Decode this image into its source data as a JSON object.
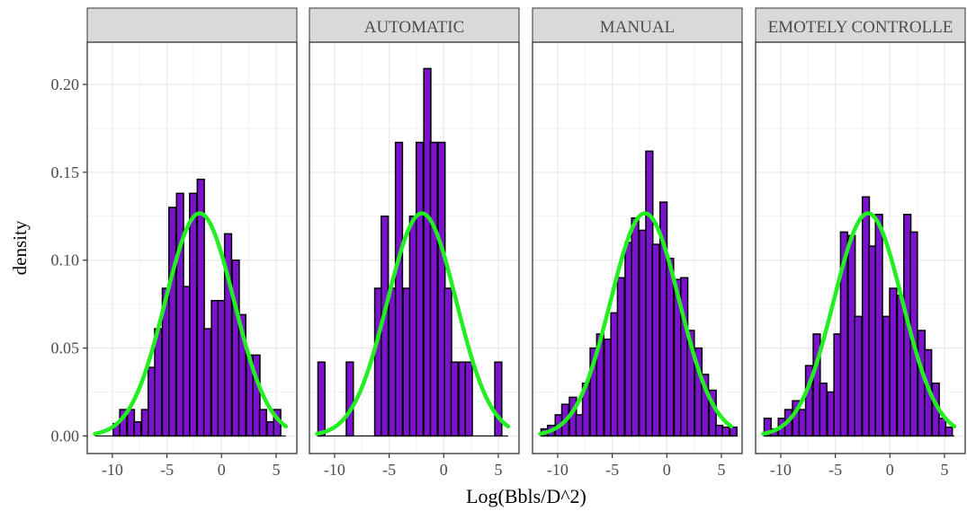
{
  "chart_data": {
    "type": "bar",
    "subtype": "faceted-histogram-with-normal-density-curve",
    "xlabel": "Log(Bbls/D^2)",
    "ylabel": "density",
    "xlim": [
      -12.3,
      6.9
    ],
    "ylim": [
      -0.01,
      0.224
    ],
    "x_ticks": [
      -10,
      -5,
      0,
      5
    ],
    "x_tick_labels": [
      "-10",
      "-5",
      "0",
      "5"
    ],
    "y_ticks": [
      0,
      0.05,
      0.1,
      0.15,
      0.2
    ],
    "y_tick_labels": [
      "0.00",
      "0.05",
      "0.10",
      "0.15",
      "0.20"
    ],
    "grid": true,
    "bin_width": 0.64,
    "colors": {
      "bar_fill": "#7b12cc",
      "bar_stroke": "#000000",
      "curve": "#22ee22",
      "strip_fill": "#d9d9d9"
    },
    "normal_curve": {
      "mean": -2.0,
      "sd": 3.15
    },
    "panels": [
      {
        "strip_label": "",
        "bin_centers": [
          -9.6,
          -9.0,
          -8.3,
          -7.7,
          -7.0,
          -6.4,
          -5.8,
          -5.1,
          -4.5,
          -3.8,
          -3.2,
          -2.6,
          -1.9,
          -1.3,
          -0.6,
          0.0,
          0.6,
          1.3,
          1.9,
          2.6,
          3.2,
          3.8,
          4.5,
          5.1
        ],
        "values": [
          0.007,
          0.015,
          0.015,
          0.008,
          0.015,
          0.039,
          0.061,
          0.084,
          0.13,
          0.138,
          0.085,
          0.138,
          0.146,
          0.061,
          0.077,
          0.077,
          0.115,
          0.1,
          0.069,
          0.046,
          0.046,
          0.015,
          0.008,
          0.015
        ]
      },
      {
        "strip_label": "AUTOMATIC",
        "bin_centers": [
          -11.2,
          -8.6,
          -6.0,
          -5.4,
          -4.7,
          -4.1,
          -3.4,
          -2.8,
          -2.2,
          -1.5,
          -0.9,
          -0.2,
          0.4,
          1.0,
          1.7,
          2.3,
          5.0
        ],
        "values": [
          0.042,
          0.042,
          0.084,
          0.125,
          0.084,
          0.167,
          0.084,
          0.125,
          0.167,
          0.209,
          0.167,
          0.167,
          0.084,
          0.042,
          0.042,
          0.042,
          0.042
        ]
      },
      {
        "strip_label": "MANUAL",
        "bin_centers": [
          -11.2,
          -10.6,
          -9.9,
          -9.3,
          -8.6,
          -8.0,
          -7.4,
          -6.7,
          -6.1,
          -5.4,
          -4.8,
          -4.2,
          -3.5,
          -2.9,
          -2.2,
          -1.6,
          -1.0,
          -0.3,
          0.3,
          1.0,
          1.6,
          2.2,
          2.9,
          3.5,
          4.2,
          4.8,
          5.4,
          6.1
        ],
        "values": [
          0.004,
          0.006,
          0.012,
          0.018,
          0.022,
          0.012,
          0.03,
          0.05,
          0.058,
          0.055,
          0.07,
          0.09,
          0.11,
          0.124,
          0.117,
          0.162,
          0.109,
          0.133,
          0.101,
          0.089,
          0.09,
          0.06,
          0.05,
          0.035,
          0.026,
          0.006,
          0.005,
          0.005
        ]
      },
      {
        "strip_label": "EMOTELY CONTROLLE",
        "bin_centers": [
          -11.2,
          -10.6,
          -9.9,
          -9.3,
          -8.6,
          -8.0,
          -7.4,
          -6.7,
          -6.1,
          -5.4,
          -4.8,
          -4.2,
          -3.5,
          -2.9,
          -2.2,
          -1.6,
          -1.0,
          -0.3,
          0.3,
          1.0,
          1.6,
          2.2,
          2.9,
          3.5,
          4.2,
          4.8,
          5.4
        ],
        "values": [
          0.01,
          0.004,
          0.01,
          0.015,
          0.02,
          0.015,
          0.04,
          0.058,
          0.03,
          0.025,
          0.058,
          0.116,
          0.114,
          0.068,
          0.136,
          0.108,
          0.126,
          0.068,
          0.084,
          0.08,
          0.126,
          0.116,
          0.06,
          0.049,
          0.03,
          0.01,
          0.005
        ]
      }
    ]
  }
}
